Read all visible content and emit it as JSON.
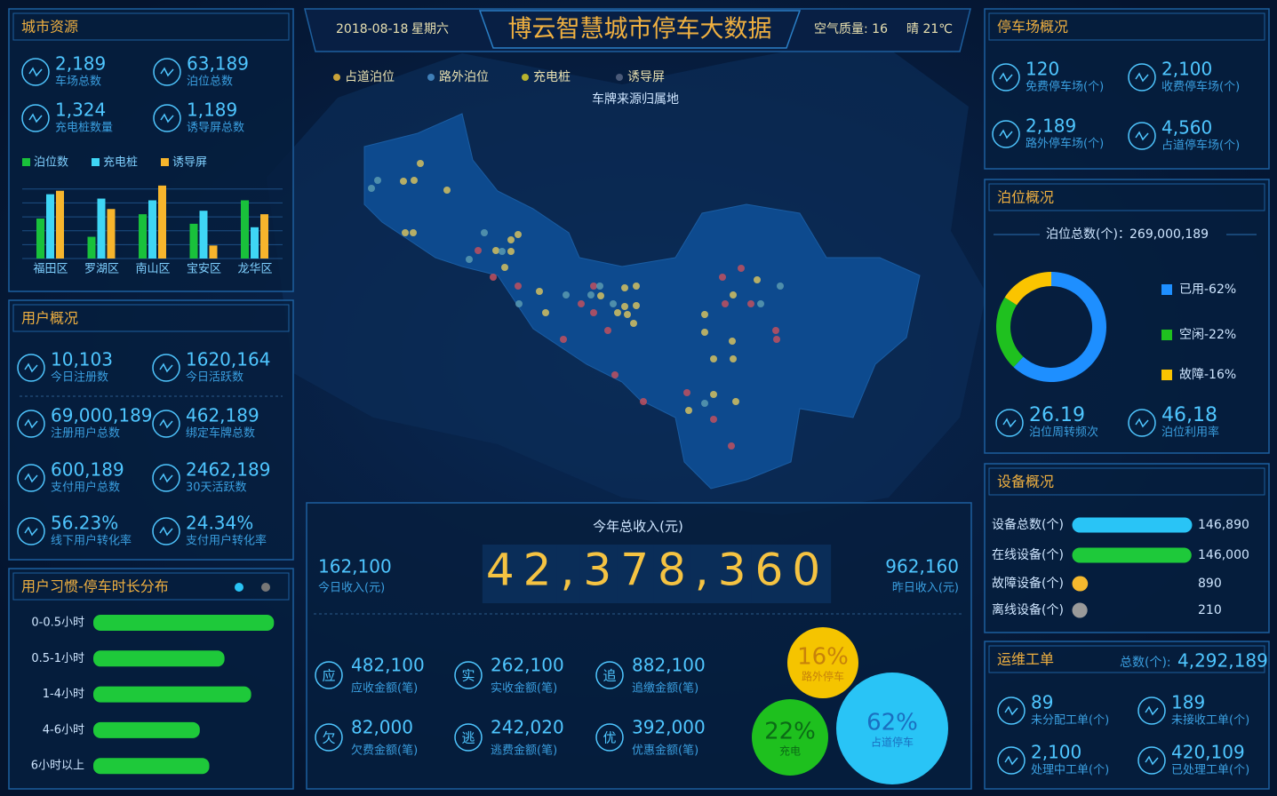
{
  "header": {
    "date": "2018-08-18",
    "weekday": "星期六",
    "title": "博云智慧城市停车大数据",
    "air_quality": "空气质量: 16",
    "weather": "晴 21℃"
  },
  "city_resources": {
    "title": "城市资源",
    "stats": [
      {
        "value": "2,189",
        "label": "车场总数"
      },
      {
        "value": "63,189",
        "label": "泊位总数"
      },
      {
        "value": "1,324",
        "label": "充电桩数量"
      },
      {
        "value": "1,189",
        "label": "诱导屏总数"
      }
    ],
    "chart": {
      "type": "bar",
      "categories": [
        "福田区",
        "罗湖区",
        "南山区",
        "宝安区",
        "龙华区"
      ],
      "series": [
        {
          "name": "泊位数",
          "color": "#19c13b",
          "values": [
            46,
            25,
            51,
            40,
            67
          ]
        },
        {
          "name": "充电桩",
          "color": "#3fd6f5",
          "values": [
            74,
            69,
            67,
            55,
            36
          ]
        },
        {
          "name": "诱导屏",
          "color": "#f7b52c",
          "values": [
            78,
            57,
            84,
            15,
            51
          ]
        }
      ],
      "ylim": [
        0,
        90
      ],
      "yticks": [
        0,
        16,
        32,
        48,
        64,
        80
      ],
      "grid": true
    }
  },
  "user_overview": {
    "title": "用户概况",
    "stats": [
      {
        "value": "10,103",
        "label": "今日注册数"
      },
      {
        "value": "1620,164",
        "label": "今日活跃数"
      },
      {
        "value": "69,000,189",
        "label": "注册用户总数"
      },
      {
        "value": "462,189",
        "label": "绑定车牌总数"
      },
      {
        "value": "600,189",
        "label": "支付用户总数"
      },
      {
        "value": "2462,189",
        "label": "30天活跃数"
      },
      {
        "value": "56.23%",
        "label": "线下用户转化率"
      },
      {
        "value": "24.34%",
        "label": "支付用户转化率"
      }
    ]
  },
  "parking_habits": {
    "title": "用户习惯-停车时长分布",
    "chart": {
      "type": "bar",
      "orientation": "horizontal",
      "categories": [
        "0-0.5小时",
        "0.5-1小时",
        "1-4小时",
        "4-6小时",
        "6小时以上"
      ],
      "values": [
        95,
        69,
        83,
        56,
        61
      ],
      "color": "#1ec93a",
      "xlim": [
        0,
        100
      ]
    }
  },
  "map": {
    "legend": [
      {
        "name": "占道泊位",
        "color": "#c9a33a"
      },
      {
        "name": "路外泊位",
        "color": "#3f7fb8"
      },
      {
        "name": "充电桩",
        "color": "#b8b32e"
      },
      {
        "name": "诱导屏",
        "color": "#4a5a78"
      }
    ],
    "subtitle": "车牌来源归属地"
  },
  "revenue": {
    "title": "今年总收入(元)",
    "total": "42,378,360",
    "today": {
      "value": "162,100",
      "label": "今日收入(元)"
    },
    "yesterday": {
      "value": "962,160",
      "label": "昨日收入(元)"
    },
    "items": [
      {
        "badge": "应",
        "value": "482,100",
        "label": "应收金额(笔)"
      },
      {
        "badge": "实",
        "value": "262,100",
        "label": "实收金额(笔)"
      },
      {
        "badge": "追",
        "value": "882,100",
        "label": "追缴金额(笔)"
      },
      {
        "badge": "欠",
        "value": "82,000",
        "label": "欠费金额(笔)"
      },
      {
        "badge": "逃",
        "value": "242,020",
        "label": "逃费金额(笔)"
      },
      {
        "badge": "优",
        "value": "392,000",
        "label": "优惠金额(笔)"
      }
    ],
    "bubbles": {
      "type": "bubble",
      "values": [
        16,
        22,
        62
      ],
      "value_labels": [
        "16%",
        "22%",
        "62%"
      ],
      "names": [
        "路外停车",
        "充电",
        "占道停车"
      ],
      "colors": [
        "#f5c400",
        "#1ec01e",
        "#29c4f6"
      ]
    }
  },
  "parking_lots": {
    "title": "停车场概况",
    "stats": [
      {
        "value": "120",
        "label": "免费停车场(个)"
      },
      {
        "value": "2,100",
        "label": "收费停车场(个)"
      },
      {
        "value": "2,189",
        "label": "路外停车场(个)"
      },
      {
        "value": "4,560",
        "label": "占道停车场(个)"
      }
    ]
  },
  "berths": {
    "title": "泊位概况",
    "total_label": "泊位总数(个)：",
    "total": "269,000,189",
    "chart": {
      "type": "pie",
      "donut": true,
      "categories": [
        "已用-62%",
        "空闲-22%",
        "故障-16%"
      ],
      "values": [
        62,
        22,
        16
      ],
      "colors": [
        "#1e8fff",
        "#1fc11f",
        "#fac400"
      ]
    },
    "stats": [
      {
        "value": "26.19",
        "label": "泊位周转频次"
      },
      {
        "value": "46,18",
        "label": "泊位利用率"
      }
    ]
  },
  "devices": {
    "title": "设备概况",
    "chart": {
      "type": "bar",
      "orientation": "horizontal",
      "categories": [
        "设备总数(个)",
        "在线设备(个)",
        "故障设备(个)",
        "离线设备(个)"
      ],
      "values": [
        146890,
        146000,
        890,
        210
      ],
      "value_labels": [
        "146,890",
        "146,000",
        "890",
        "210"
      ],
      "colors": [
        "#29c4f6",
        "#1ec93a",
        "#f5b82e",
        "#9a9a9a"
      ],
      "xlim": [
        0,
        146890
      ]
    }
  },
  "work_orders": {
    "title": "运维工单",
    "total_label": "总数(个):",
    "total": "4,292,189",
    "stats": [
      {
        "value": "89",
        "label": "未分配工单(个)"
      },
      {
        "value": "189",
        "label": "未接收工单(个)"
      },
      {
        "value": "2,100",
        "label": "处理中工单(个)"
      },
      {
        "value": "420,109",
        "label": "已处理工单(个)"
      }
    ]
  }
}
